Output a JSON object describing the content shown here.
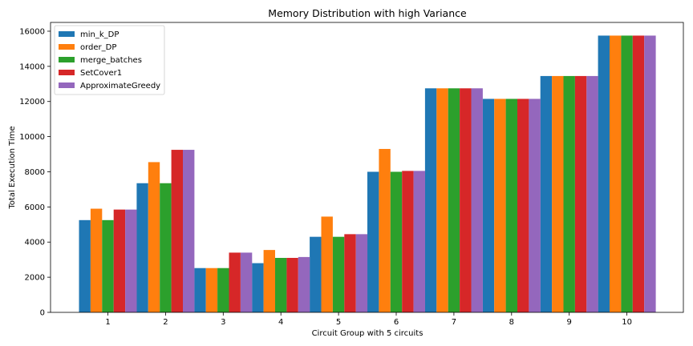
{
  "chart_data": {
    "type": "bar",
    "title": "Memory Distribution with high Variance",
    "xlabel": "Circuit Group with 5 circuits",
    "ylabel": "Total Execution Time",
    "categories": [
      "1",
      "2",
      "3",
      "4",
      "5",
      "6",
      "7",
      "8",
      "9",
      "10"
    ],
    "ylim": [
      0,
      16500
    ],
    "yticks": [
      0,
      2000,
      4000,
      6000,
      8000,
      10000,
      12000,
      14000,
      16000
    ],
    "grid": false,
    "legend_position": "top-left",
    "series": [
      {
        "name": "min_k_DP",
        "color": "#1f77b4",
        "values": [
          5250,
          7350,
          2520,
          2800,
          4300,
          8000,
          12750,
          12150,
          13450,
          15750
        ]
      },
      {
        "name": "order_DP",
        "color": "#ff7f0e",
        "values": [
          5900,
          8550,
          2520,
          3550,
          5450,
          9300,
          12750,
          12150,
          13450,
          15750
        ]
      },
      {
        "name": "merge_batches",
        "color": "#2ca02c",
        "values": [
          5250,
          7350,
          2520,
          3100,
          4300,
          8000,
          12750,
          12150,
          13450,
          15750
        ]
      },
      {
        "name": "SetCover1",
        "color": "#d62728",
        "values": [
          5850,
          9250,
          3400,
          3100,
          4450,
          8050,
          12750,
          12150,
          13450,
          15750
        ]
      },
      {
        "name": "ApproximateGreedy",
        "color": "#9467bd",
        "values": [
          5850,
          9250,
          3400,
          3150,
          4450,
          8050,
          12750,
          12150,
          13450,
          15750
        ]
      }
    ]
  }
}
